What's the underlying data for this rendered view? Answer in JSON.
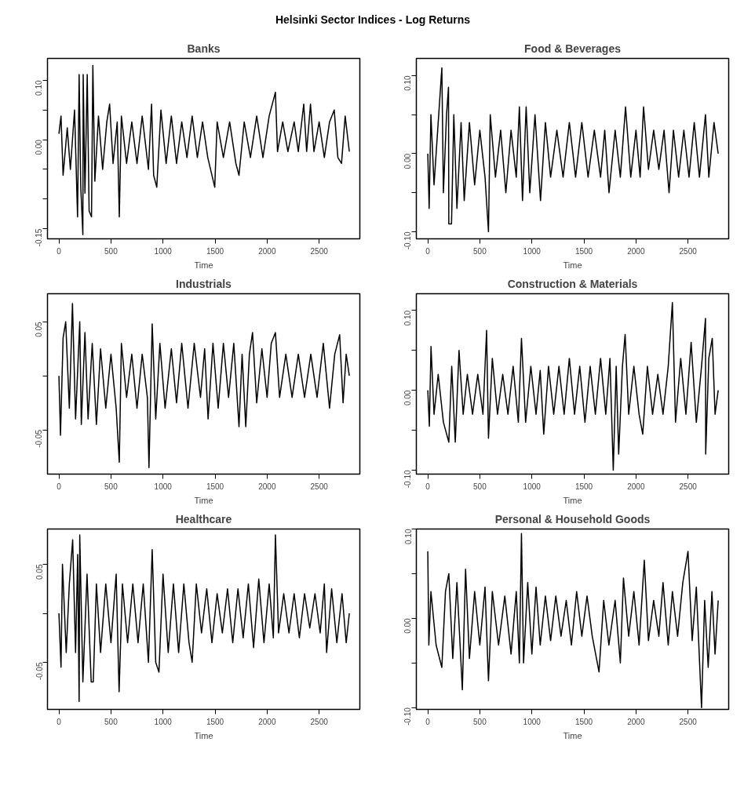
{
  "chart_data": [
    {
      "type": "line",
      "title": "Banks",
      "xlabel": "Time",
      "annotations": [
        "Helsinki Sector Indices - Log Returns"
      ],
      "color": "#000000",
      "xlim": [
        -110,
        2891
      ],
      "ylim": [
        -0.167,
        0.137
      ],
      "xticks": [
        0,
        500,
        1000,
        1500,
        2000,
        2500
      ],
      "yticks": [
        {
          "value": -0.15,
          "label": "-0.15"
        },
        {
          "value": -0.1,
          "label": null
        },
        {
          "value": -0.05,
          "label": null
        },
        {
          "value": 0,
          "label": "0.00"
        },
        {
          "value": 0.05,
          "label": null
        },
        {
          "value": 0.1,
          "label": "0.10"
        }
      ],
      "x": [
        0,
        20,
        40,
        80,
        110,
        150,
        179,
        194,
        210,
        230,
        233,
        250,
        272,
        290,
        313,
        326,
        345,
        380,
        420,
        460,
        487,
        520,
        560,
        580,
        600,
        650,
        700,
        750,
        800,
        860,
        890,
        910,
        940,
        980,
        1030,
        1080,
        1130,
        1180,
        1230,
        1280,
        1330,
        1380,
        1430,
        1497,
        1520,
        1580,
        1640,
        1700,
        1730,
        1780,
        1840,
        1900,
        1960,
        2020,
        2080,
        2100,
        2150,
        2200,
        2260,
        2300,
        2352,
        2380,
        2417,
        2450,
        2500,
        2550,
        2600,
        2645,
        2680,
        2715,
        2750,
        2790
      ],
      "values": [
        0.01,
        0.04,
        -0.06,
        0.02,
        -0.05,
        0.05,
        -0.13,
        0.11,
        -0.08,
        -0.16,
        0.11,
        -0.09,
        0.11,
        -0.12,
        -0.13,
        0.125,
        -0.07,
        0.04,
        -0.05,
        0.03,
        0.06,
        -0.04,
        0.03,
        -0.13,
        0.04,
        -0.04,
        0.03,
        -0.04,
        0.04,
        -0.05,
        0.06,
        -0.06,
        -0.08,
        0.05,
        -0.04,
        0.04,
        -0.04,
        0.03,
        -0.03,
        0.04,
        -0.03,
        0.03,
        -0.03,
        -0.08,
        0.03,
        -0.03,
        0.03,
        -0.04,
        -0.06,
        0.03,
        -0.03,
        0.04,
        -0.03,
        0.04,
        0.08,
        -0.02,
        0.03,
        -0.02,
        0.03,
        -0.02,
        0.06,
        -0.02,
        0.06,
        -0.02,
        0.03,
        -0.03,
        0.03,
        0.05,
        -0.03,
        -0.04,
        0.04,
        -0.02
      ]
    },
    {
      "type": "line",
      "title": "Food & Beverages",
      "xlabel": "Time",
      "color": "#000000",
      "xlim": [
        -110,
        2891
      ],
      "ylim": [
        -0.109,
        0.122
      ],
      "xticks": [
        0,
        500,
        1000,
        1500,
        2000,
        2500
      ],
      "yticks": [
        {
          "value": -0.1,
          "label": "-0.10"
        },
        {
          "value": -0.05,
          "label": null
        },
        {
          "value": 0,
          "label": "0.00"
        },
        {
          "value": 0.05,
          "label": null
        },
        {
          "value": 0.1,
          "label": "0.10"
        }
      ],
      "x": [
        0,
        13,
        30,
        60,
        100,
        135,
        150,
        180,
        199,
        202,
        228,
        250,
        280,
        320,
        350,
        400,
        450,
        500,
        550,
        583,
        600,
        650,
        700,
        750,
        800,
        850,
        880,
        910,
        945,
        980,
        1030,
        1083,
        1130,
        1180,
        1240,
        1300,
        1360,
        1420,
        1480,
        1540,
        1600,
        1660,
        1700,
        1741,
        1800,
        1850,
        1900,
        1950,
        2000,
        2040,
        2073,
        2120,
        2170,
        2220,
        2270,
        2318,
        2360,
        2410,
        2460,
        2510,
        2560,
        2610,
        2668,
        2700,
        2750,
        2790
      ],
      "values": [
        0.0,
        -0.07,
        0.05,
        -0.04,
        0.04,
        0.11,
        -0.05,
        0.05,
        0.085,
        -0.09,
        -0.09,
        0.05,
        -0.07,
        0.04,
        -0.06,
        0.04,
        -0.04,
        0.03,
        -0.03,
        -0.1,
        0.05,
        -0.03,
        0.03,
        -0.05,
        0.03,
        -0.03,
        0.06,
        -0.06,
        0.06,
        -0.05,
        0.05,
        -0.06,
        0.04,
        -0.03,
        0.03,
        -0.03,
        0.04,
        -0.03,
        0.04,
        -0.03,
        0.03,
        -0.03,
        0.03,
        -0.05,
        0.03,
        -0.03,
        0.06,
        -0.03,
        0.03,
        -0.03,
        0.06,
        -0.02,
        0.03,
        -0.02,
        0.03,
        -0.05,
        0.03,
        -0.03,
        0.03,
        -0.03,
        0.04,
        -0.03,
        0.05,
        -0.03,
        0.04,
        0.0
      ]
    },
    {
      "type": "line",
      "title": "Industrials",
      "xlabel": "Time",
      "color": "#000000",
      "xlim": [
        -110,
        2891
      ],
      "ylim": [
        -0.091,
        0.076
      ],
      "xticks": [
        0,
        500,
        1000,
        1500,
        2000,
        2500
      ],
      "yticks": [
        {
          "value": -0.05,
          "label": "-0.05"
        },
        {
          "value": 0,
          "label": null
        },
        {
          "value": 0.05,
          "label": "0.05"
        }
      ],
      "x": [
        0,
        15,
        40,
        65,
        100,
        130,
        160,
        200,
        215,
        250,
        280,
        320,
        360,
        400,
        450,
        500,
        550,
        580,
        600,
        650,
        700,
        750,
        800,
        850,
        865,
        896,
        930,
        970,
        1020,
        1080,
        1130,
        1180,
        1240,
        1300,
        1360,
        1400,
        1433,
        1480,
        1530,
        1580,
        1630,
        1680,
        1730,
        1760,
        1795,
        1830,
        1860,
        1900,
        1950,
        2000,
        2040,
        2080,
        2120,
        2180,
        2240,
        2300,
        2360,
        2420,
        2480,
        2540,
        2600,
        2650,
        2697,
        2730,
        2760,
        2790
      ],
      "values": [
        0.0,
        -0.055,
        0.035,
        0.05,
        -0.03,
        0.067,
        -0.04,
        0.05,
        -0.045,
        0.04,
        -0.04,
        0.03,
        -0.045,
        0.025,
        -0.03,
        0.02,
        -0.03,
        -0.08,
        0.03,
        -0.02,
        0.02,
        -0.03,
        0.02,
        -0.02,
        -0.085,
        0.048,
        -0.04,
        0.03,
        -0.03,
        0.025,
        -0.025,
        0.03,
        -0.03,
        0.03,
        -0.02,
        0.025,
        -0.04,
        0.03,
        -0.03,
        0.03,
        -0.02,
        0.03,
        -0.047,
        0.02,
        -0.047,
        0.02,
        0.04,
        -0.025,
        0.025,
        -0.02,
        0.03,
        0.04,
        -0.02,
        0.02,
        -0.02,
        0.02,
        -0.02,
        0.02,
        -0.02,
        0.03,
        -0.03,
        0.02,
        0.038,
        -0.025,
        0.02,
        0.0
      ]
    },
    {
      "type": "line",
      "title": "Construction & Materials",
      "xlabel": "Time",
      "color": "#000000",
      "xlim": [
        -110,
        2891
      ],
      "ylim": [
        -0.105,
        0.121
      ],
      "xticks": [
        0,
        500,
        1000,
        1500,
        2000,
        2500
      ],
      "yticks": [
        {
          "value": -0.1,
          "label": "-0.10"
        },
        {
          "value": -0.05,
          "label": null
        },
        {
          "value": 0,
          "label": "0.00"
        },
        {
          "value": 0.05,
          "label": null
        },
        {
          "value": 0.1,
          "label": "0.10"
        }
      ],
      "x": [
        0,
        15,
        31,
        60,
        100,
        150,
        202,
        230,
        264,
        300,
        340,
        380,
        430,
        480,
        530,
        565,
        583,
        620,
        670,
        720,
        770,
        820,
        870,
        900,
        940,
        990,
        1040,
        1080,
        1114,
        1160,
        1210,
        1260,
        1310,
        1360,
        1410,
        1460,
        1510,
        1560,
        1610,
        1660,
        1710,
        1750,
        1782,
        1810,
        1834,
        1870,
        1896,
        1930,
        1980,
        2030,
        2065,
        2110,
        2160,
        2210,
        2260,
        2310,
        2350,
        2380,
        2430,
        2480,
        2530,
        2580,
        2630,
        2668,
        2670,
        2700,
        2733,
        2760,
        2790
      ],
      "values": [
        0.0,
        -0.045,
        0.055,
        -0.03,
        0.02,
        -0.04,
        -0.065,
        0.03,
        -0.065,
        0.05,
        -0.03,
        0.02,
        -0.03,
        0.02,
        -0.03,
        0.075,
        -0.06,
        0.04,
        -0.03,
        0.02,
        -0.03,
        0.03,
        -0.04,
        0.065,
        -0.04,
        0.03,
        -0.03,
        0.025,
        -0.055,
        0.03,
        -0.03,
        0.03,
        -0.03,
        0.04,
        -0.03,
        0.03,
        -0.04,
        0.03,
        -0.03,
        0.04,
        -0.03,
        0.04,
        -0.1,
        0.03,
        -0.08,
        0.03,
        0.07,
        -0.03,
        0.03,
        -0.03,
        -0.055,
        0.03,
        -0.03,
        0.02,
        -0.03,
        0.03,
        0.11,
        -0.04,
        0.04,
        -0.03,
        0.06,
        -0.04,
        0.03,
        0.09,
        -0.08,
        0.04,
        0.065,
        -0.03,
        0.0
      ]
    },
    {
      "type": "line",
      "title": "Healthcare",
      "xlabel": "Time",
      "color": "#000000",
      "xlim": [
        -110,
        2891
      ],
      "ylim": [
        -0.098,
        0.086
      ],
      "xticks": [
        0,
        500,
        1000,
        1500,
        2000,
        2500
      ],
      "yticks": [
        {
          "value": -0.05,
          "label": "-0.05"
        },
        {
          "value": 0,
          "label": null
        },
        {
          "value": 0.05,
          "label": "0.05"
        }
      ],
      "x": [
        0,
        20,
        34,
        70,
        100,
        132,
        160,
        180,
        194,
        200,
        230,
        270,
        310,
        330,
        360,
        400,
        450,
        500,
        550,
        578,
        610,
        660,
        710,
        760,
        810,
        860,
        896,
        930,
        961,
        1000,
        1050,
        1100,
        1150,
        1200,
        1250,
        1280,
        1320,
        1370,
        1420,
        1470,
        1520,
        1570,
        1620,
        1670,
        1720,
        1770,
        1820,
        1870,
        1920,
        1970,
        2020,
        2060,
        2080,
        2110,
        2160,
        2210,
        2260,
        2310,
        2360,
        2410,
        2460,
        2510,
        2550,
        2572,
        2620,
        2670,
        2720,
        2760,
        2790
      ],
      "values": [
        0.0,
        -0.055,
        0.05,
        -0.04,
        0.03,
        0.075,
        -0.04,
        0.06,
        -0.09,
        0.08,
        -0.07,
        0.04,
        -0.07,
        -0.07,
        0.03,
        -0.04,
        0.03,
        -0.03,
        0.04,
        -0.08,
        0.03,
        -0.03,
        0.03,
        -0.03,
        0.03,
        -0.05,
        0.065,
        -0.05,
        -0.06,
        0.04,
        -0.04,
        0.03,
        -0.04,
        0.03,
        -0.03,
        -0.05,
        0.03,
        -0.02,
        0.025,
        -0.03,
        0.02,
        -0.02,
        0.025,
        -0.03,
        0.025,
        -0.025,
        0.03,
        -0.035,
        0.035,
        -0.03,
        0.03,
        -0.025,
        0.08,
        -0.02,
        0.02,
        -0.02,
        0.02,
        -0.025,
        0.02,
        -0.015,
        0.02,
        -0.02,
        0.03,
        -0.04,
        0.025,
        -0.03,
        0.02,
        -0.03,
        0.0
      ]
    },
    {
      "type": "line",
      "title": "Personal & Household Goods",
      "xlabel": "Time",
      "color": "#000000",
      "xlim": [
        -110,
        2891
      ],
      "ylim": [
        -0.102,
        0.1
      ],
      "xticks": [
        0,
        500,
        1000,
        1500,
        2000,
        2500
      ],
      "yticks": [
        {
          "value": -0.1,
          "label": "-0.10"
        },
        {
          "value": -0.05,
          "label": null
        },
        {
          "value": 0,
          "label": "0.00"
        },
        {
          "value": 0.05,
          "label": null
        },
        {
          "value": 0.1,
          "label": "0.10"
        }
      ],
      "x": [
        0,
        10,
        30,
        80,
        135,
        170,
        202,
        240,
        280,
        332,
        363,
        400,
        450,
        500,
        550,
        583,
        620,
        680,
        740,
        800,
        850,
        880,
        900,
        920,
        960,
        1000,
        1040,
        1080,
        1130,
        1180,
        1230,
        1280,
        1330,
        1380,
        1430,
        1480,
        1530,
        1580,
        1645,
        1690,
        1740,
        1800,
        1850,
        1880,
        1930,
        1980,
        2030,
        2080,
        2120,
        2170,
        2220,
        2260,
        2310,
        2350,
        2400,
        2450,
        2500,
        2540,
        2580,
        2630,
        2660,
        2694,
        2730,
        2760,
        2790
      ],
      "values": [
        0.075,
        -0.03,
        0.03,
        -0.03,
        -0.055,
        0.03,
        0.05,
        -0.045,
        0.04,
        -0.08,
        0.055,
        -0.045,
        0.03,
        -0.03,
        0.035,
        -0.07,
        0.03,
        -0.03,
        0.025,
        -0.04,
        0.03,
        -0.05,
        0.095,
        -0.05,
        0.04,
        -0.04,
        0.035,
        -0.03,
        0.025,
        -0.025,
        0.025,
        -0.02,
        0.02,
        -0.03,
        0.03,
        -0.02,
        0.025,
        -0.02,
        -0.06,
        0.02,
        -0.03,
        0.02,
        -0.05,
        0.045,
        -0.02,
        0.03,
        -0.03,
        0.065,
        -0.025,
        0.02,
        -0.02,
        0.04,
        -0.03,
        0.03,
        -0.02,
        0.04,
        0.075,
        -0.025,
        0.035,
        -0.1,
        0.02,
        -0.055,
        0.03,
        -0.04,
        0.02
      ]
    }
  ]
}
